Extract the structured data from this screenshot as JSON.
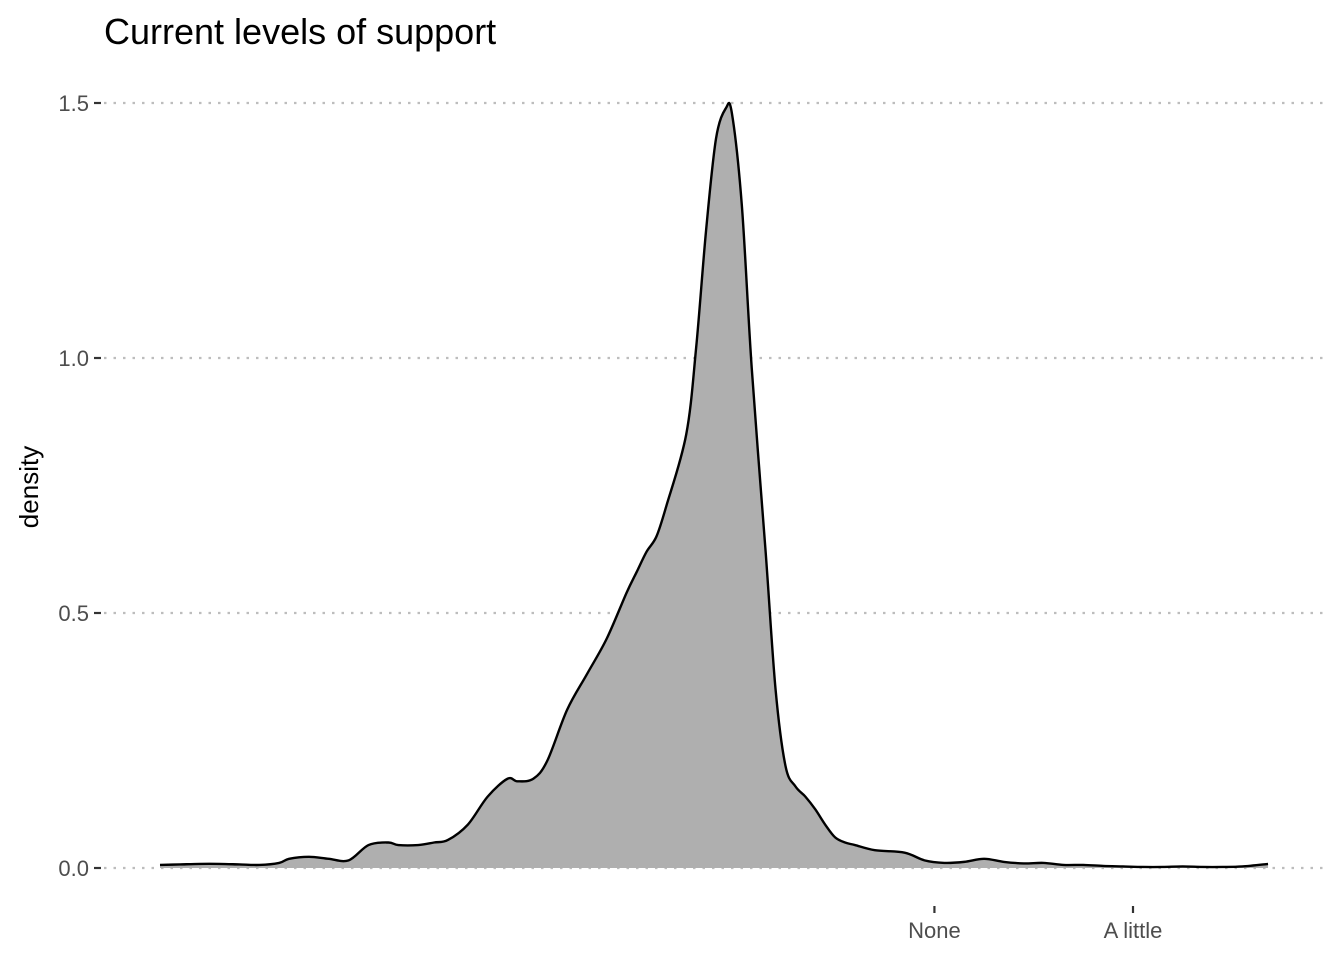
{
  "chart_data": {
    "type": "area",
    "title": "Current levels of support",
    "xlabel": "",
    "ylabel": "density",
    "ylim": [
      0,
      1.5
    ],
    "y_ticks": [
      0.0,
      0.5,
      1.0,
      1.5
    ],
    "y_tick_labels": [
      "0.0",
      "0.5",
      "1.0",
      "1.5"
    ],
    "xlim": [
      0,
      5.6
    ],
    "x_ticks": [
      3.9,
      4.9
    ],
    "x_tick_labels": [
      "None",
      "A little"
    ],
    "grid": "horizontal-dotted",
    "fill_color": "#afafaf",
    "line_color": "#000000",
    "series": [
      {
        "name": "density",
        "x": [
          0.0,
          0.1,
          0.2,
          0.3,
          0.4,
          0.5,
          0.6,
          0.65,
          0.75,
          0.85,
          0.95,
          1.05,
          1.15,
          1.2,
          1.3,
          1.38,
          1.45,
          1.55,
          1.65,
          1.75,
          1.8,
          1.88,
          1.95,
          2.05,
          2.15,
          2.25,
          2.35,
          2.4,
          2.45,
          2.5,
          2.55,
          2.65,
          2.7,
          2.75,
          2.8,
          2.85,
          2.88,
          2.93,
          2.98,
          3.05,
          3.1,
          3.15,
          3.2,
          3.25,
          3.3,
          3.35,
          3.4,
          3.45,
          3.5,
          3.6,
          3.75,
          3.85,
          3.95,
          4.05,
          4.15,
          4.25,
          4.35,
          4.45,
          4.55,
          4.65,
          4.75,
          4.85,
          4.95,
          5.05,
          5.15,
          5.25,
          5.35,
          5.45,
          5.58
        ],
        "y": [
          0.006,
          0.007,
          0.008,
          0.008,
          0.007,
          0.006,
          0.01,
          0.018,
          0.022,
          0.018,
          0.015,
          0.045,
          0.05,
          0.045,
          0.045,
          0.05,
          0.055,
          0.085,
          0.14,
          0.175,
          0.17,
          0.175,
          0.21,
          0.31,
          0.38,
          0.45,
          0.54,
          0.58,
          0.62,
          0.65,
          0.71,
          0.85,
          1.02,
          1.25,
          1.43,
          1.49,
          1.48,
          1.3,
          0.98,
          0.62,
          0.35,
          0.2,
          0.16,
          0.14,
          0.115,
          0.085,
          0.06,
          0.05,
          0.045,
          0.035,
          0.03,
          0.015,
          0.01,
          0.012,
          0.018,
          0.012,
          0.009,
          0.01,
          0.006,
          0.006,
          0.004,
          0.003,
          0.002,
          0.002,
          0.003,
          0.002,
          0.002,
          0.003,
          0.008
        ]
      }
    ]
  }
}
